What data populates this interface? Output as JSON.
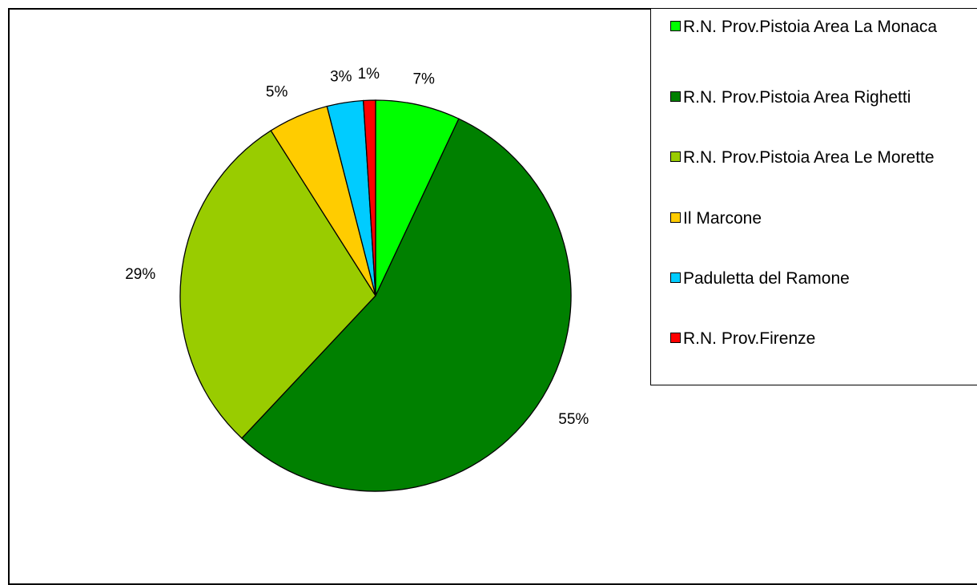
{
  "chart_data": {
    "type": "pie",
    "categories": [
      "R.N. Prov.Pistoia Area La Monaca",
      "R.N. Prov.Pistoia Area Righetti",
      "R.N. Prov.Pistoia Area Le Morette",
      "Il Marcone",
      "Paduletta del Ramone",
      "R.N. Prov.Firenze"
    ],
    "values": [
      7,
      55,
      29,
      5,
      3,
      1
    ],
    "value_labels": [
      "7%",
      "55%",
      "29%",
      "5%",
      "3%",
      "1%"
    ],
    "colors": [
      "#00ff00",
      "#008000",
      "#99cc00",
      "#ffcc00",
      "#00ccff",
      "#ff0000"
    ],
    "legend": "right"
  }
}
